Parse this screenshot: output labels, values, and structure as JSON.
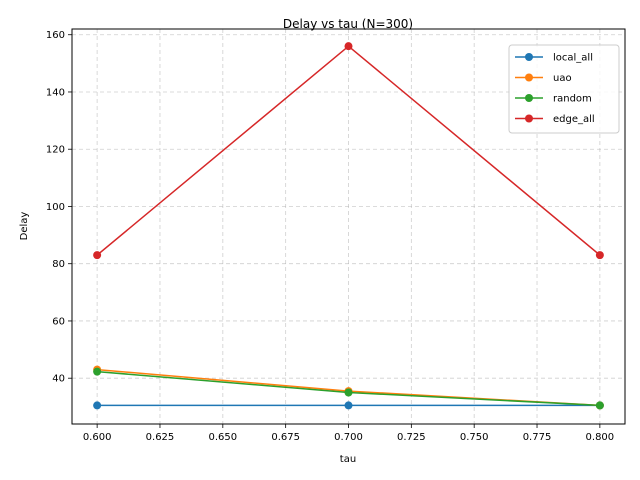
{
  "chart_data": {
    "type": "line",
    "title": "Delay vs tau (N=300)",
    "xlabel": "tau",
    "ylabel": "Delay",
    "xlim": [
      0.59,
      0.81
    ],
    "ylim": [
      24,
      162
    ],
    "x": [
      0.6,
      0.7,
      0.8
    ],
    "xticks": [
      "0.600",
      "0.625",
      "0.650",
      "0.675",
      "0.700",
      "0.725",
      "0.750",
      "0.775",
      "0.800"
    ],
    "xtick_values": [
      0.6,
      0.625,
      0.65,
      0.675,
      0.7,
      0.725,
      0.75,
      0.775,
      0.8
    ],
    "yticks": [
      "40",
      "60",
      "80",
      "100",
      "120",
      "140",
      "160"
    ],
    "ytick_values": [
      40,
      60,
      80,
      100,
      120,
      140,
      160
    ],
    "grid": true,
    "legend_position": "top-right",
    "series": [
      {
        "name": "local_all",
        "color": "#1f77b4",
        "values": [
          30.5,
          30.5,
          30.5
        ]
      },
      {
        "name": "uao",
        "color": "#ff7f0e",
        "values": [
          43.0,
          35.5,
          30.5
        ]
      },
      {
        "name": "random",
        "color": "#2ca02c",
        "values": [
          42.3,
          35.0,
          30.5
        ]
      },
      {
        "name": "edge_all",
        "color": "#d62728",
        "values": [
          83.0,
          156.0,
          83.0
        ]
      }
    ]
  }
}
